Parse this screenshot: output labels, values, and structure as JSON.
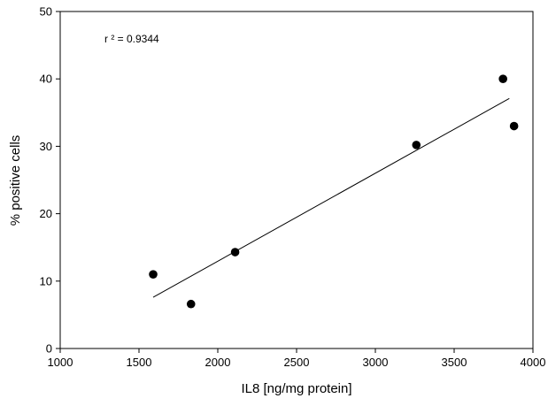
{
  "chart_data": {
    "type": "scatter",
    "title": "",
    "xlabel": "IL8 [ng/mg protein]",
    "ylabel": "% positive cells",
    "xlim": [
      1000,
      4000
    ],
    "ylim": [
      0,
      50
    ],
    "xticks": [
      1000,
      1500,
      2000,
      2500,
      3000,
      3500,
      4000
    ],
    "yticks": [
      0,
      10,
      20,
      30,
      40,
      50
    ],
    "grid": false,
    "annotation": "r ² = 0.9344",
    "points": [
      {
        "x": 1590,
        "y": 11.0
      },
      {
        "x": 1830,
        "y": 6.6
      },
      {
        "x": 2110,
        "y": 14.3
      },
      {
        "x": 3260,
        "y": 30.2
      },
      {
        "x": 3810,
        "y": 40.0
      },
      {
        "x": 3880,
        "y": 33.0
      }
    ],
    "regression_line": {
      "x": [
        1590,
        3850
      ],
      "y": [
        7.6,
        37.1
      ]
    },
    "colors": {
      "marker": "#000000",
      "line": "#000000",
      "axis": "#000000"
    }
  }
}
